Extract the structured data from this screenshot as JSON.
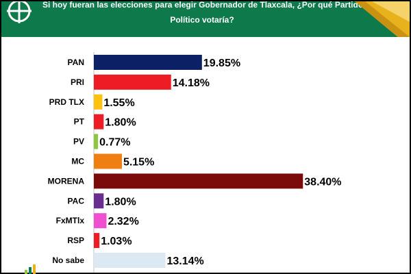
{
  "header": {
    "title_line1": "Si hoy fueran las elecciones para elegir Gobernador de Tlaxcala, ¿Por qué Partido",
    "title_line2": "Político votaría?",
    "background": "#0e7a4c",
    "accent": "#e8b21c"
  },
  "chart_data": {
    "type": "bar",
    "orientation": "horizontal",
    "categories": [
      "PAN",
      "PRI",
      "PRD TLX",
      "PT",
      "PV",
      "MC",
      "MORENA",
      "PAC",
      "FxMTlx",
      "RSP",
      "No sabe"
    ],
    "values": [
      19.85,
      14.18,
      1.55,
      1.8,
      0.77,
      5.15,
      38.4,
      1.8,
      2.32,
      1.03,
      13.14
    ],
    "value_labels": [
      "19.85%",
      "14.18%",
      "1.55%",
      "1.80%",
      "0.77%",
      "5.15%",
      "38.40%",
      "1.80%",
      "2.32%",
      "1.03%",
      "13.14%"
    ],
    "colors": [
      "#0c2066",
      "#ee1c25",
      "#ffc20e",
      "#ee1c25",
      "#8dc63f",
      "#f07f12",
      "#7b0a0a",
      "#6a2e8e",
      "#f04fd0",
      "#ee1c25",
      "#dce9f3"
    ],
    "xlim": [
      0,
      40
    ],
    "grid": false,
    "legend": "none"
  }
}
